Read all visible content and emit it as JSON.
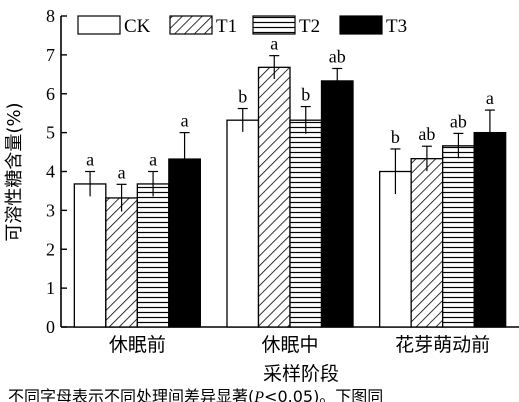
{
  "chart_data": {
    "type": "bar",
    "ylabel": "可溶性糖含量(%)",
    "xlabel": "采样阶段",
    "ylim": [
      0,
      8
    ],
    "yticks": [
      0,
      1,
      2,
      3,
      4,
      5,
      6,
      7,
      8
    ],
    "categories": [
      "休眠前",
      "休眠中",
      "花芽萌动前"
    ],
    "series": [
      {
        "name": "CK",
        "pattern": "none",
        "values": [
          3.68,
          5.32,
          4.0
        ],
        "errors": [
          0.32,
          0.3,
          0.58
        ],
        "letters": [
          "a",
          "b",
          "b"
        ]
      },
      {
        "name": "T1",
        "pattern": "diagonal",
        "values": [
          3.32,
          6.68,
          4.33
        ],
        "errors": [
          0.35,
          0.3,
          0.32
        ],
        "letters": [
          "a",
          "a",
          "ab"
        ]
      },
      {
        "name": "T2",
        "pattern": "horizontal",
        "values": [
          3.68,
          5.32,
          4.66
        ],
        "errors": [
          0.32,
          0.35,
          0.32
        ],
        "letters": [
          "a",
          "b",
          "ab"
        ]
      },
      {
        "name": "T3",
        "pattern": "solid",
        "values": [
          4.32,
          6.33,
          5.0
        ],
        "errors": [
          0.68,
          0.32,
          0.58
        ],
        "letters": [
          "a",
          "ab",
          "a"
        ]
      }
    ],
    "legend_position": "top",
    "grid": false
  },
  "caption": {
    "prefix": "不同字母表示不同处理间差异显著(",
    "p_symbol": "P",
    "suffix": "<0.05)。下图同"
  }
}
